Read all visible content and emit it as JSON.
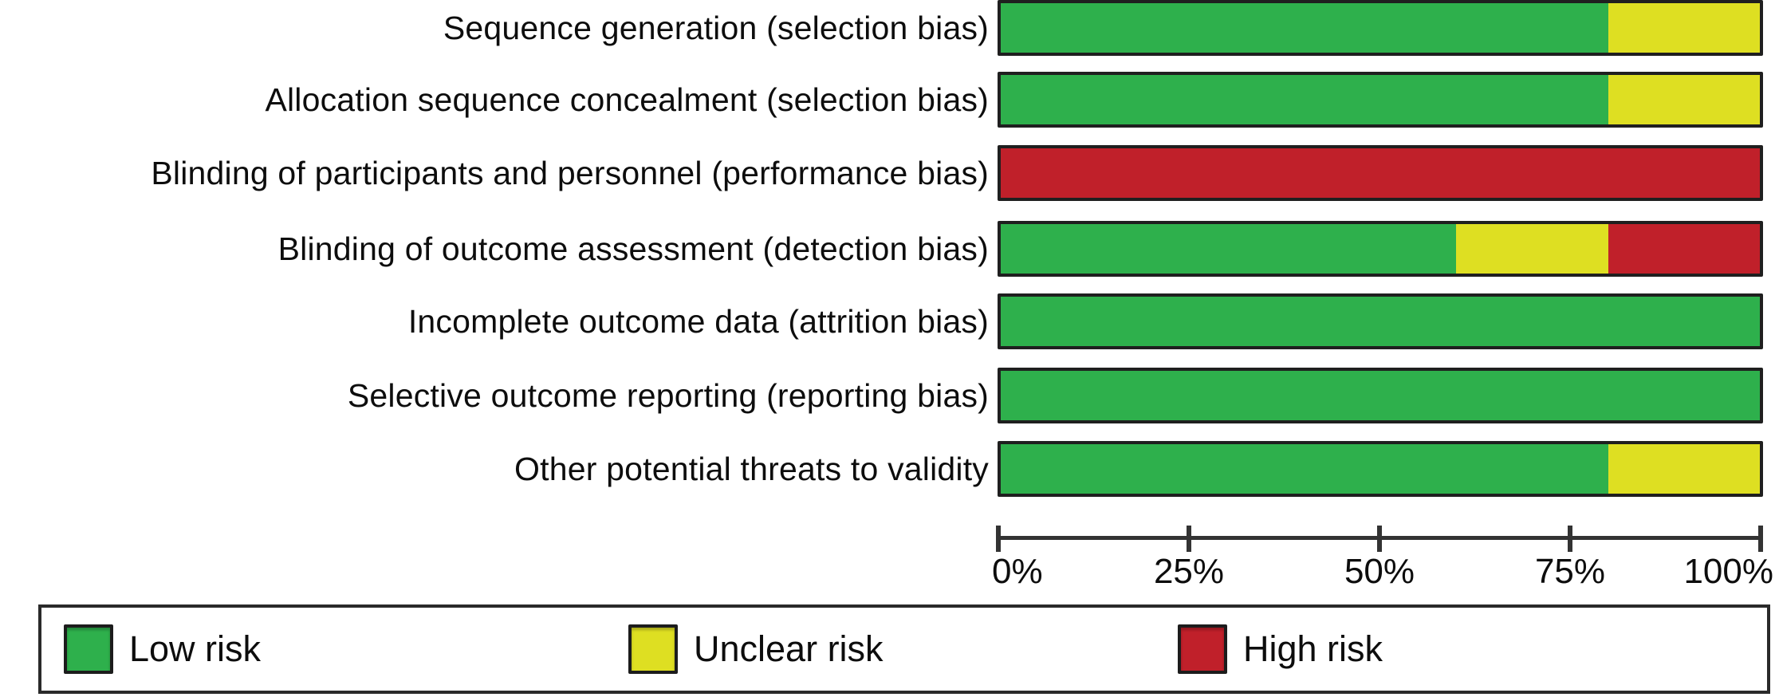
{
  "chart_data": {
    "type": "bar",
    "orientation": "horizontal",
    "stacked": true,
    "title": "",
    "xlabel": "",
    "ylabel": "",
    "value_unit": "percent",
    "categories": [
      "Sequence generation (selection bias)",
      "Allocation sequence concealment (selection bias)",
      "Blinding of participants and personnel (performance bias)",
      "Blinding of outcome assessment (detection bias)",
      "Incomplete outcome data (attrition bias)",
      "Selective outcome reporting (reporting bias)",
      "Other potential threats to validity"
    ],
    "series": [
      {
        "name": "Low risk",
        "color": "#2eb04c",
        "values": [
          80,
          80,
          0,
          60,
          100,
          100,
          80
        ]
      },
      {
        "name": "Unclear risk",
        "color": "#dedf22",
        "values": [
          20,
          20,
          0,
          20,
          0,
          0,
          20
        ]
      },
      {
        "name": "High risk",
        "color": "#c0202a",
        "values": [
          0,
          0,
          100,
          20,
          0,
          0,
          0
        ]
      }
    ],
    "x_axis": {
      "range": [
        0,
        100
      ],
      "tick_values": [
        0,
        25,
        50,
        75,
        100
      ],
      "tick_labels": [
        "0%",
        "25%",
        "50%",
        "75%",
        "100%"
      ]
    },
    "legend": {
      "position": "bottom",
      "entries": [
        "Low risk",
        "Unclear risk",
        "High risk"
      ]
    },
    "grid": false
  },
  "colors": {
    "background": "#ffffff",
    "bar_border": "#1f1f1f",
    "axis": "#333333",
    "text": "#0d0d0d",
    "legend_border": "#2a2a2a"
  }
}
